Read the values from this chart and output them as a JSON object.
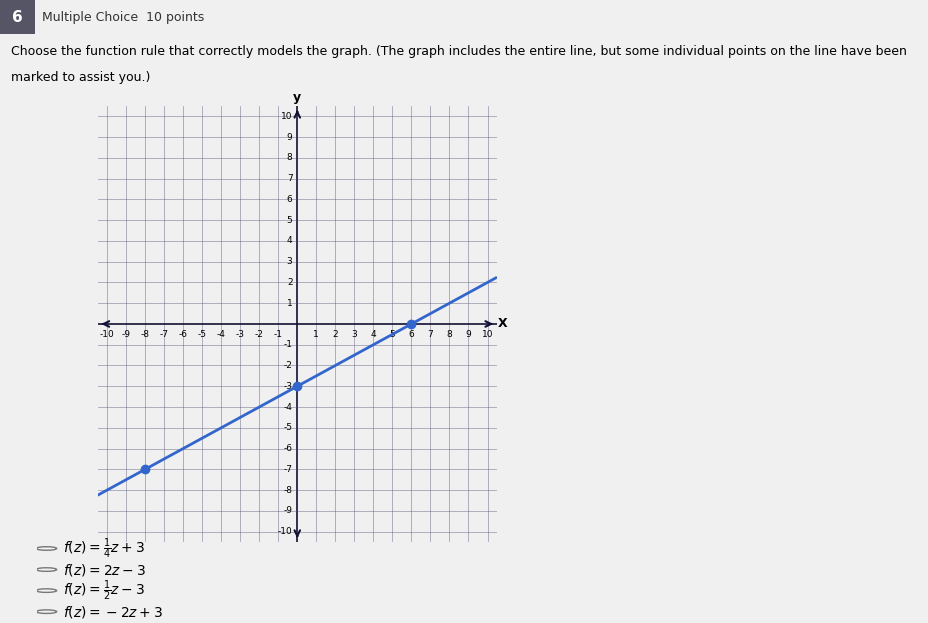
{
  "question_number": "6",
  "question_type": "Multiple Choice  10 points",
  "question_text_line1": "Choose the function rule that correctly models the graph. (The graph includes the entire line, but some individual points on the line have been",
  "question_text_line2": "marked to assist you.)",
  "xlim": [
    -10,
    10
  ],
  "ylim": [
    -10,
    10
  ],
  "xtick_labels": [
    "-10",
    "-9",
    "-8",
    "-7",
    "-6",
    "-5",
    "-4",
    "-3",
    "-2",
    "-1",
    "1",
    "2",
    "3",
    "4",
    "5",
    "6",
    "7",
    "8",
    "9",
    "10"
  ],
  "xtick_vals": [
    -10,
    -9,
    -8,
    -7,
    -6,
    -5,
    -4,
    -3,
    -2,
    -1,
    1,
    2,
    3,
    4,
    5,
    6,
    7,
    8,
    9,
    10
  ],
  "ytick_labels": [
    "-10",
    "-9",
    "-8",
    "-7",
    "-6",
    "-5",
    "-4",
    "-3",
    "-2",
    "-1",
    "1",
    "2",
    "3",
    "4",
    "5",
    "6",
    "7",
    "8",
    "9",
    "10"
  ],
  "ytick_vals": [
    -10,
    -9,
    -8,
    -7,
    -6,
    -5,
    -4,
    -3,
    -2,
    -1,
    1,
    2,
    3,
    4,
    5,
    6,
    7,
    8,
    9,
    10
  ],
  "line_color": "#3366cc",
  "line_width": 2.0,
  "slope": 0.5,
  "intercept": -3,
  "marked_points": [
    [
      -8,
      -7
    ],
    [
      0,
      -3
    ],
    [
      6,
      0
    ]
  ],
  "marked_point_color": "#3366cc",
  "marked_point_size": 6,
  "grid_color": "#555577",
  "grid_linewidth": 0.5,
  "grid_alpha": 0.6,
  "axis_line_color": "#111133",
  "background_color": "#f0f0f0",
  "outer_bg": "#f0f0f0",
  "fig_bg": "#f0f0f0",
  "header_bg": "#555566",
  "header_text_color": "#ffffff",
  "choices_latex": [
    "$f(z) = \\frac{1}{4}z + 3$",
    "$f(z) = 2z - 3$",
    "$f(z) = \\frac{1}{2}z - 3$",
    "$f(z) = -2z + 3$"
  ],
  "fig_width": 9.29,
  "fig_height": 6.23
}
